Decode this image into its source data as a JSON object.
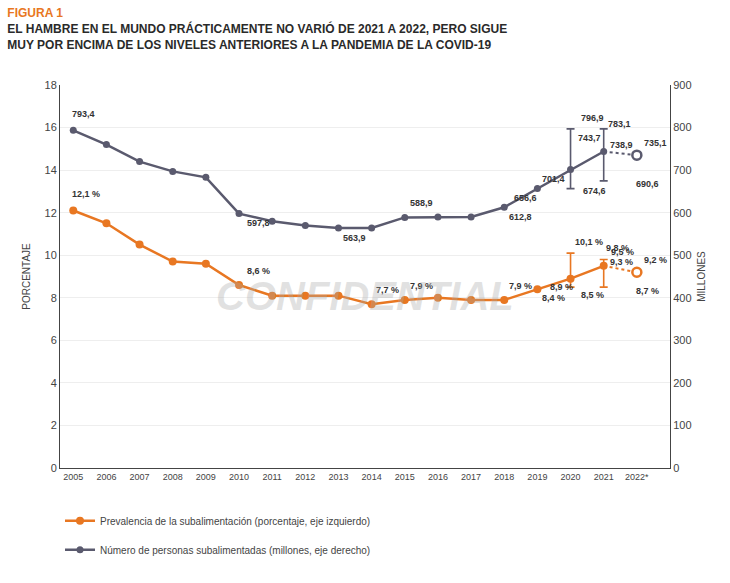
{
  "chart_data": {
    "type": "line",
    "title": "FIGURA 1",
    "subtitle": [
      "EL HAMBRE EN EL MUNDO PRÁCTICAMENTE NO VARIÓ DE 2021 A 2022, PERO SIGUE",
      "MUY POR ENCIMA DE LOS NIVELES ANTERIORES A LA PANDEMIA DE LA COVID-19"
    ],
    "watermark": "CONFIDENTIAL",
    "x": [
      2005,
      2006,
      2007,
      2008,
      2009,
      2010,
      2011,
      2012,
      2013,
      2014,
      2015,
      2016,
      2017,
      2018,
      2019,
      2020,
      2021,
      2022
    ],
    "xlim": [
      2004.6,
      2023.0
    ],
    "xticks": [
      2005,
      2006,
      2007,
      2008,
      2009,
      2010,
      2011,
      2012,
      2013,
      2014,
      2015,
      2016,
      2017,
      2018,
      2019,
      2020,
      2021,
      {
        "value": 2022,
        "label": "2022*"
      }
    ],
    "ylabel": "PORCENTAJE",
    "y2label": "MILLONES",
    "ylim": [
      0,
      18
    ],
    "yticks": [
      0,
      2,
      4,
      6,
      8,
      10,
      12,
      14,
      16,
      18
    ],
    "y2lim": [
      0,
      900
    ],
    "y2ticks": [
      0,
      100,
      200,
      300,
      400,
      500,
      600,
      700,
      800,
      900
    ],
    "grid": true,
    "legend": "bottom",
    "series": [
      {
        "name": "Prevalencia de la subalimentación (porcentaje, eje izquierdo)",
        "color": "#E87722",
        "axis": "y",
        "marker": "circle",
        "line_style": "solid",
        "values": [
          12.1,
          11.5,
          10.5,
          9.7,
          9.6,
          8.6,
          8.1,
          8.1,
          8.1,
          7.7,
          7.9,
          8.0,
          7.9,
          7.9,
          8.4,
          8.9,
          9.5,
          9.2
        ],
        "error_bars": [
          {
            "x": 2020,
            "center": 9.5,
            "minus": 1.0,
            "plus": 0.6
          },
          {
            "x": 2021,
            "center": 9.3,
            "minus": 0.8,
            "plus": 0.5
          }
        ]
      },
      {
        "name": "Número de personas subalimentadas (millones, eje derecho)",
        "color": "#5a5a6e",
        "axis": "y2",
        "marker": "circle",
        "line_style": "solid",
        "values": [
          793.4,
          760.0,
          720.0,
          697.0,
          683.0,
          597.8,
          580.0,
          570.0,
          563.9,
          563.9,
          588.9,
          590.0,
          590.0,
          612.8,
          656.6,
          701.4,
          743.7,
          735.1
        ],
        "error_bars": [
          {
            "x": 2020,
            "center": 743.7,
            "minus": 87.1,
            "plus": 53.2
          },
          {
            "x": 2021,
            "center": 738.9,
            "minus": 64.3,
            "plus": 58.0
          }
        ]
      }
    ],
    "annotations": [
      {
        "text": "12,1 %",
        "x": 2005,
        "y": 12.1,
        "axis": "y"
      },
      {
        "text": "8,6 %",
        "x": 2010,
        "y": 8.6,
        "axis": "y"
      },
      {
        "text": "7,7 %",
        "x": 2014,
        "y": 7.7,
        "axis": "y"
      },
      {
        "text": "7,9 %",
        "x": 2015,
        "y": 7.9,
        "axis": "y"
      },
      {
        "text": "7,9 %",
        "x": 2018,
        "y": 7.9,
        "axis": "y"
      },
      {
        "text": "8,4 %",
        "x": 2019,
        "y": 8.4,
        "axis": "y"
      },
      {
        "text": "8,9 %",
        "x": 2020,
        "y": 8.9,
        "axis": "y"
      },
      {
        "text": "9,5 %",
        "x": 2021,
        "y": 9.5,
        "axis": "y"
      },
      {
        "text": "9,2 %",
        "x": 2022,
        "y": 9.2,
        "axis": "y"
      },
      {
        "text": "10,1 %",
        "x": 2020,
        "y": 10.1,
        "axis": "y"
      },
      {
        "text": "9,3 %",
        "x": 2021,
        "y": 9.3,
        "axis": "y"
      },
      {
        "text": "9,8 %",
        "x": 2022,
        "y": 9.8,
        "axis": "y"
      },
      {
        "text": "8,5 %",
        "x": 2021,
        "y": 8.5,
        "axis": "y"
      },
      {
        "text": "8,7 %",
        "x": 2022,
        "y": 8.7,
        "axis": "y"
      },
      {
        "text": "793,4",
        "x": 2005,
        "y": 793.4,
        "axis": "y2"
      },
      {
        "text": "597,8",
        "x": 2010,
        "y": 597.8,
        "axis": "y2"
      },
      {
        "text": "563,9",
        "x": 2013,
        "y": 563.9,
        "axis": "y2"
      },
      {
        "text": "588,9",
        "x": 2015,
        "y": 588.9,
        "axis": "y2"
      },
      {
        "text": "612,8",
        "x": 2018,
        "y": 612.8,
        "axis": "y2"
      },
      {
        "text": "656,6",
        "x": 2019,
        "y": 656.6,
        "axis": "y2"
      },
      {
        "text": "701,4",
        "x": 2020,
        "y": 701.4,
        "axis": "y2"
      },
      {
        "text": "743,7",
        "x": 2021,
        "y": 743.7,
        "axis": "y2"
      },
      {
        "text": "735,1",
        "x": 2022,
        "y": 735.1,
        "axis": "y2"
      },
      {
        "text": "796,9",
        "x": 2021,
        "y": 796.9,
        "axis": "y2"
      },
      {
        "text": "738,9",
        "x": 2021,
        "y": 738.9,
        "axis": "y2"
      },
      {
        "text": "783,1",
        "x": 2022,
        "y": 783.1,
        "axis": "y2"
      },
      {
        "text": "674,6",
        "x": 2021,
        "y": 674.6,
        "axis": "y2"
      },
      {
        "text": "690,6",
        "x": 2022,
        "y": 690.6,
        "axis": "y2"
      }
    ]
  }
}
